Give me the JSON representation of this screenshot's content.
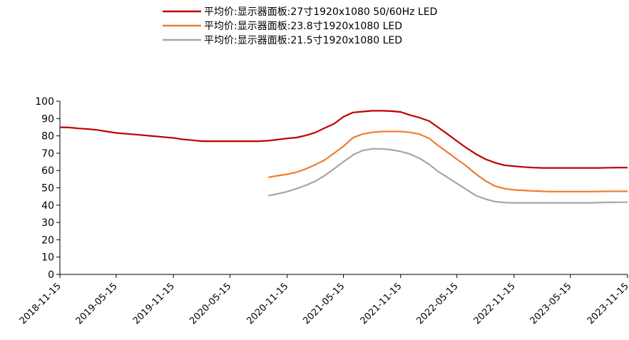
{
  "chart_data": {
    "type": "line",
    "title": "",
    "xlabel": "",
    "ylabel": "",
    "ylim": [
      0,
      100
    ],
    "yticks": [
      0,
      10,
      20,
      30,
      40,
      50,
      60,
      70,
      80,
      90,
      100
    ],
    "xlim": [
      "2018-11-15",
      "2023-11-15"
    ],
    "xticks": [
      "2018-11-15",
      "2019-05-15",
      "2019-11-15",
      "2020-05-15",
      "2020-11-15",
      "2021-05-15",
      "2021-11-15",
      "2022-05-15",
      "2022-11-15",
      "2023-05-15",
      "2023-11-15"
    ],
    "grid": false,
    "legend_position": "top-center",
    "series": [
      {
        "name": "平均价:显示器面板:27寸1920x1080 50/60Hz LED",
        "color": "#c00000",
        "points": [
          [
            "2018-11-15",
            85.0
          ],
          [
            "2018-12-15",
            84.8
          ],
          [
            "2019-01-15",
            84.3
          ],
          [
            "2019-02-15",
            83.9
          ],
          [
            "2019-03-15",
            83.4
          ],
          [
            "2019-04-15",
            82.5
          ],
          [
            "2019-05-15",
            81.7
          ],
          [
            "2019-06-15",
            81.2
          ],
          [
            "2019-07-15",
            80.8
          ],
          [
            "2019-08-15",
            80.3
          ],
          [
            "2019-09-15",
            79.8
          ],
          [
            "2019-10-15",
            79.3
          ],
          [
            "2019-11-15",
            78.8
          ],
          [
            "2019-12-15",
            78.0
          ],
          [
            "2020-01-15",
            77.5
          ],
          [
            "2020-02-15",
            76.9
          ],
          [
            "2020-03-15",
            76.9
          ],
          [
            "2020-04-15",
            76.9
          ],
          [
            "2020-05-15",
            76.9
          ],
          [
            "2020-06-15",
            76.9
          ],
          [
            "2020-07-15",
            76.9
          ],
          [
            "2020-08-15",
            76.9
          ],
          [
            "2020-09-15",
            77.2
          ],
          [
            "2020-10-15",
            77.8
          ],
          [
            "2020-11-15",
            78.5
          ],
          [
            "2020-12-15",
            79.0
          ],
          [
            "2021-01-15",
            80.3
          ],
          [
            "2021-02-15",
            82.0
          ],
          [
            "2021-03-15",
            84.5
          ],
          [
            "2021-04-15",
            87.0
          ],
          [
            "2021-05-15",
            91.0
          ],
          [
            "2021-06-15",
            93.5
          ],
          [
            "2021-07-15",
            94.0
          ],
          [
            "2021-08-15",
            94.5
          ],
          [
            "2021-09-15",
            94.5
          ],
          [
            "2021-10-15",
            94.3
          ],
          [
            "2021-11-15",
            93.8
          ],
          [
            "2021-12-15",
            92.0
          ],
          [
            "2022-01-15",
            90.5
          ],
          [
            "2022-02-15",
            88.5
          ],
          [
            "2022-03-15",
            85.0
          ],
          [
            "2022-04-15",
            81.0
          ],
          [
            "2022-05-15",
            77.0
          ],
          [
            "2022-06-15",
            73.0
          ],
          [
            "2022-07-15",
            69.5
          ],
          [
            "2022-08-15",
            66.5
          ],
          [
            "2022-09-15",
            64.5
          ],
          [
            "2022-10-15",
            63.0
          ],
          [
            "2022-11-15",
            62.5
          ],
          [
            "2022-12-15",
            62.0
          ],
          [
            "2023-01-15",
            61.7
          ],
          [
            "2023-02-15",
            61.5
          ],
          [
            "2023-03-15",
            61.5
          ],
          [
            "2023-04-15",
            61.5
          ],
          [
            "2023-05-15",
            61.5
          ],
          [
            "2023-06-15",
            61.5
          ],
          [
            "2023-07-15",
            61.5
          ],
          [
            "2023-08-15",
            61.5
          ],
          [
            "2023-09-15",
            61.6
          ],
          [
            "2023-10-15",
            61.7
          ],
          [
            "2023-11-15",
            61.7
          ]
        ]
      },
      {
        "name": "平均价:显示器面板:23.8寸1920x1080 LED",
        "color": "#ed7d31",
        "points": [
          [
            "2020-09-15",
            56.0
          ],
          [
            "2020-10-15",
            57.0
          ],
          [
            "2020-11-15",
            57.8
          ],
          [
            "2020-12-15",
            59.0
          ],
          [
            "2021-01-15",
            61.0
          ],
          [
            "2021-02-15",
            63.5
          ],
          [
            "2021-03-15",
            66.0
          ],
          [
            "2021-04-15",
            70.0
          ],
          [
            "2021-05-15",
            74.0
          ],
          [
            "2021-06-15",
            79.0
          ],
          [
            "2021-07-15",
            81.0
          ],
          [
            "2021-08-15",
            82.0
          ],
          [
            "2021-09-15",
            82.5
          ],
          [
            "2021-10-15",
            82.5
          ],
          [
            "2021-11-15",
            82.5
          ],
          [
            "2021-12-15",
            82.0
          ],
          [
            "2022-01-15",
            81.0
          ],
          [
            "2022-02-15",
            78.5
          ],
          [
            "2022-03-15",
            74.5
          ],
          [
            "2022-04-15",
            70.5
          ],
          [
            "2022-05-15",
            66.5
          ],
          [
            "2022-06-15",
            62.5
          ],
          [
            "2022-07-15",
            58.0
          ],
          [
            "2022-08-15",
            54.0
          ],
          [
            "2022-09-15",
            51.0
          ],
          [
            "2022-10-15",
            49.5
          ],
          [
            "2022-11-15",
            48.8
          ],
          [
            "2022-12-15",
            48.5
          ],
          [
            "2023-01-15",
            48.2
          ],
          [
            "2023-02-15",
            48.0
          ],
          [
            "2023-03-15",
            47.8
          ],
          [
            "2023-04-15",
            47.8
          ],
          [
            "2023-05-15",
            47.8
          ],
          [
            "2023-06-15",
            47.8
          ],
          [
            "2023-07-15",
            47.8
          ],
          [
            "2023-08-15",
            47.9
          ],
          [
            "2023-09-15",
            48.0
          ],
          [
            "2023-10-15",
            48.0
          ],
          [
            "2023-11-15",
            48.0
          ]
        ]
      },
      {
        "name": "平均价:显示器面板:21.5寸1920x1080 LED",
        "color": "#a6a6a6",
        "points": [
          [
            "2020-09-15",
            45.5
          ],
          [
            "2020-10-15",
            46.5
          ],
          [
            "2020-11-15",
            47.8
          ],
          [
            "2020-12-15",
            49.5
          ],
          [
            "2021-01-15",
            51.5
          ],
          [
            "2021-02-15",
            54.0
          ],
          [
            "2021-03-15",
            57.0
          ],
          [
            "2021-04-15",
            61.0
          ],
          [
            "2021-05-15",
            65.0
          ],
          [
            "2021-06-15",
            69.0
          ],
          [
            "2021-07-15",
            71.5
          ],
          [
            "2021-08-15",
            72.5
          ],
          [
            "2021-09-15",
            72.5
          ],
          [
            "2021-10-15",
            72.0
          ],
          [
            "2021-11-15",
            71.0
          ],
          [
            "2021-12-15",
            69.5
          ],
          [
            "2022-01-15",
            67.0
          ],
          [
            "2022-02-15",
            63.5
          ],
          [
            "2022-03-15",
            59.5
          ],
          [
            "2022-04-15",
            56.0
          ],
          [
            "2022-05-15",
            52.5
          ],
          [
            "2022-06-15",
            49.0
          ],
          [
            "2022-07-15",
            45.5
          ],
          [
            "2022-08-15",
            43.5
          ],
          [
            "2022-09-15",
            42.0
          ],
          [
            "2022-10-15",
            41.5
          ],
          [
            "2022-11-15",
            41.3
          ],
          [
            "2022-12-15",
            41.3
          ],
          [
            "2023-01-15",
            41.3
          ],
          [
            "2023-02-15",
            41.3
          ],
          [
            "2023-03-15",
            41.3
          ],
          [
            "2023-04-15",
            41.3
          ],
          [
            "2023-05-15",
            41.3
          ],
          [
            "2023-06-15",
            41.3
          ],
          [
            "2023-07-15",
            41.3
          ],
          [
            "2023-08-15",
            41.5
          ],
          [
            "2023-09-15",
            41.6
          ],
          [
            "2023-10-15",
            41.7
          ],
          [
            "2023-11-15",
            41.7
          ]
        ]
      }
    ]
  }
}
